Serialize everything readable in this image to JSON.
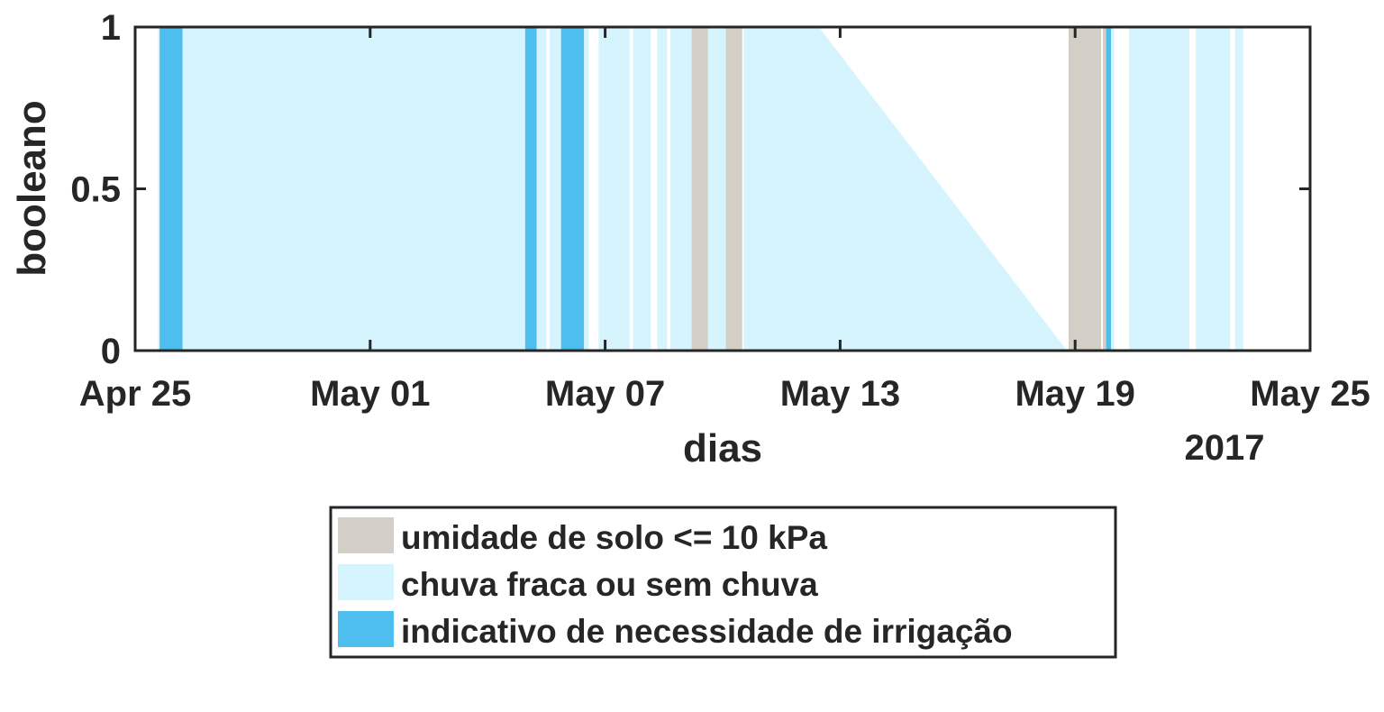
{
  "chart_data": {
    "type": "area",
    "title": "",
    "xlabel": "dias",
    "ylabel": "booleano",
    "x_axis": {
      "type": "date",
      "range": [
        "2017-04-25",
        "2017-05-25"
      ],
      "ticks": [
        "2017-04-25",
        "2017-05-01",
        "2017-05-07",
        "2017-05-13",
        "2017-05-19",
        "2017-05-25"
      ],
      "tick_labels": [
        "Apr 25",
        "May 01",
        "May 07",
        "May 13",
        "May 19",
        "May 25"
      ],
      "secondary_label": "2017"
    },
    "y_axis": {
      "range": [
        0,
        1
      ],
      "ticks": [
        0,
        0.5,
        1
      ],
      "tick_labels": [
        "0",
        "0.5",
        "1"
      ]
    },
    "grid": false,
    "legend": {
      "placement": "below",
      "entries": [
        {
          "key": "soil",
          "label": "umidade de solo <= 10 kPa"
        },
        {
          "key": "rain",
          "label": "chuva fraca ou sem chuva"
        },
        {
          "key": "irr",
          "label": "indicativo de necessidade de irrigação"
        }
      ]
    },
    "colors": {
      "soil": "#d3cfc7",
      "rain": "#d6f4fd",
      "irr": "#4dbeee",
      "axis": "#262626"
    },
    "series": [
      {
        "key": "rain",
        "label": "chuva fraca ou sem chuva",
        "intervals": [
          [
            "2017-04-25 14:00",
            "2017-05-05 12:00"
          ],
          [
            "2017-05-05 14:00",
            "2017-05-06 14:00"
          ],
          [
            "2017-05-06 20:00",
            "2017-05-07 15:00"
          ],
          [
            "2017-05-07 17:00",
            "2017-05-08 04:00"
          ],
          [
            "2017-05-08 08:00",
            "2017-05-08 14:00"
          ],
          [
            "2017-05-08 16:00",
            "2017-05-09 10:00"
          ],
          [
            "2017-05-09 12:00",
            "2017-05-10 09:00"
          ]
        ],
        "ramps": [
          [
            [
              "2017-05-10 13:00",
              0
            ],
            [
              "2017-05-10 13:00",
              1
            ],
            [
              "2017-05-12 11:00",
              1
            ],
            [
              "2017-05-18 19:00",
              0
            ]
          ]
        ],
        "intervals_late": [
          [
            "2017-05-19 17:00",
            "2017-05-20 00:00"
          ],
          [
            "2017-05-20 09:00",
            "2017-05-21 22:00"
          ],
          [
            "2017-05-22 02:00",
            "2017-05-22 23:00"
          ],
          [
            "2017-05-23 02:00",
            "2017-05-23 07:00"
          ]
        ]
      },
      {
        "key": "soil",
        "label": "umidade de solo <= 10 kPa",
        "intervals": [
          [
            "2017-05-06 02:00",
            "2017-05-06 07:00"
          ],
          [
            "2017-05-09 05:00",
            "2017-05-09 15:00"
          ],
          [
            "2017-05-10 02:00",
            "2017-05-10 12:00"
          ],
          [
            "2017-05-18 20:00",
            "2017-05-19 16:00"
          ],
          [
            "2017-05-19 17:00",
            "2017-05-19 19:00"
          ]
        ]
      },
      {
        "key": "irr",
        "label": "indicativo de necessidade de irrigação",
        "intervals": [
          [
            "2017-04-25 15:00",
            "2017-04-26 05:00"
          ],
          [
            "2017-05-04 23:00",
            "2017-05-05 06:00"
          ],
          [
            "2017-05-05 21:00",
            "2017-05-06 11:00"
          ],
          [
            "2017-05-19 19:00",
            "2017-05-19 22:00"
          ]
        ]
      }
    ]
  }
}
